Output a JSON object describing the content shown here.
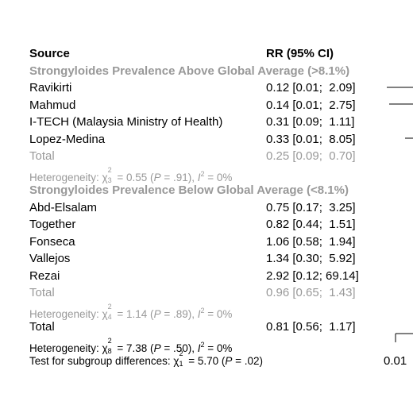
{
  "header": {
    "source": "Source",
    "rr": "RR (95% CI)"
  },
  "axis_label": "0.01",
  "rows": [
    {
      "kind": "group",
      "source": "Strongyloides Prevalence Above Global Average (>8.1%)"
    },
    {
      "kind": "study",
      "source": "Ravikirti",
      "rr": "0.12 [0.01;  2.09]"
    },
    {
      "kind": "study",
      "source": "Mahmud",
      "rr": "0.14 [0.01;  2.75]"
    },
    {
      "kind": "study",
      "source": "I-TECH (Malaysia Ministry of Health)",
      "rr": "0.31 [0.09;  1.11]"
    },
    {
      "kind": "study",
      "source": "Lopez-Medina",
      "rr": "0.33 [0.01;  8.05]"
    },
    {
      "kind": "subtotal",
      "source": "Total",
      "rr": "0.25 [0.09;  0.70]"
    },
    {
      "kind": "subhet",
      "segments": [
        {
          "text": "Heterogeneity: χ"
        },
        {
          "sup": "2",
          "sub": "3"
        },
        {
          "text": " = 0.55 ("
        },
        {
          "text": "P",
          "style": "italic"
        },
        {
          "text": " = .91), "
        },
        {
          "text": "I",
          "style": "italic"
        },
        {
          "text": "2",
          "style": "sup"
        },
        {
          "text": " = 0%"
        }
      ]
    },
    {
      "kind": "group",
      "source": "Strongyloides Prevalence Below Global Average (<8.1%)"
    },
    {
      "kind": "study",
      "source": "Abd-Elsalam",
      "rr": "0.75 [0.17;  3.25]"
    },
    {
      "kind": "study",
      "source": "Together",
      "rr": "0.82 [0.44;  1.51]"
    },
    {
      "kind": "study",
      "source": "Fonseca",
      "rr": "1.06 [0.58;  1.94]"
    },
    {
      "kind": "study",
      "source": "Vallejos",
      "rr": "1.34 [0.30;  5.92]"
    },
    {
      "kind": "study",
      "source": "Rezai",
      "rr": "2.92 [0.12; 69.14]"
    },
    {
      "kind": "subtotal",
      "source": "Total",
      "rr": "0.96 [0.65;  1.43]"
    },
    {
      "kind": "subhet",
      "segments": [
        {
          "text": "Heterogeneity: χ"
        },
        {
          "sup": "2",
          "sub": "4"
        },
        {
          "text": " = 1.14 ("
        },
        {
          "text": "P",
          "style": "italic"
        },
        {
          "text": " = .89), "
        },
        {
          "text": "I",
          "style": "italic"
        },
        {
          "text": "2",
          "style": "sup"
        },
        {
          "text": " = 0%"
        }
      ]
    },
    {
      "kind": "study",
      "source": "Total",
      "rr": "0.81 [0.56;  1.17]"
    },
    {
      "kind": "het",
      "segments": [
        {
          "text": "Heterogeneity: χ"
        },
        {
          "sup": "2",
          "sub": "8"
        },
        {
          "text": " = 7.38 ("
        },
        {
          "text": "P",
          "style": "italic"
        },
        {
          "text": " = .50), "
        },
        {
          "text": "I",
          "style": "italic"
        },
        {
          "text": "2",
          "style": "sup"
        },
        {
          "text": " = 0%"
        }
      ]
    },
    {
      "kind": "het",
      "segments": [
        {
          "text": "Test for subgroup differences: χ"
        },
        {
          "sup": "2",
          "sub": "1"
        },
        {
          "text": " = 5.70 ("
        },
        {
          "text": "P",
          "style": "italic"
        },
        {
          "text": " = .02)"
        }
      ]
    }
  ]
}
